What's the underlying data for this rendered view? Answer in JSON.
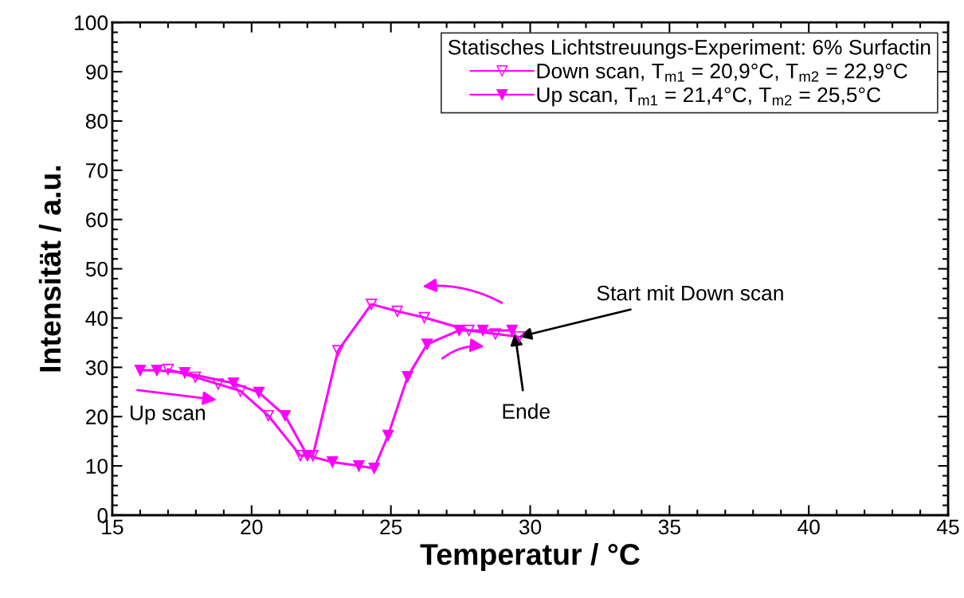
{
  "chart_data": {
    "type": "line",
    "xlabel": "Temperatur / °C",
    "ylabel": "Intensität / a.u.",
    "legend_title": "Statisches Lichtstreuungs-Experiment: 6% Surfactin",
    "xlim": [
      15,
      45
    ],
    "xticks": [
      15,
      20,
      25,
      30,
      35,
      40,
      45
    ],
    "ylim": [
      0,
      100
    ],
    "yticks": [
      0,
      10,
      20,
      30,
      40,
      50,
      60,
      70,
      80,
      90,
      100
    ],
    "grid": false,
    "legend": "top right",
    "line_style": "solid",
    "series": [
      {
        "name": "Down scan, T$_{m1}$ = 20,9°C, T$_{m2}$ = 22,9°C",
        "color": "#ff00ff",
        "marker": "triangle",
        "x": [
          29.6,
          28.75,
          27.8,
          26.2,
          25.23,
          24.3,
          23.1,
          22.2,
          21.75,
          20.6,
          19.6,
          18.8,
          17.98,
          17.0
        ],
        "values": [
          36.2,
          36.8,
          37.5,
          40.1,
          41.4,
          42.8,
          33.4,
          12.1,
          12.1,
          20.2,
          25.2,
          26.6,
          28.0,
          29.6
        ]
      },
      {
        "name": "Up scan, T$_{m1}$ = 21,4°C, T$_{m2}$ = 25,5°C",
        "color": "#ff00ff",
        "marker": "triangle",
        "x": [
          16.0,
          16.6,
          17.6,
          19.35,
          20.26,
          21.2,
          22.0,
          22.9,
          23.85,
          24.4,
          24.9,
          25.6,
          26.3,
          27.45,
          28.3,
          29.35
        ],
        "values": [
          29.4,
          29.4,
          28.9,
          26.8,
          24.9,
          20.2,
          12.1,
          10.8,
          10.0,
          9.5,
          16.2,
          28.1,
          34.7,
          37.5,
          37.5,
          37.5
        ]
      }
    ],
    "annotations": [
      {
        "text": "Start mit Down scan",
        "x": 29.6,
        "y": 36.2
      },
      {
        "text": "Ende",
        "x": 29.45,
        "y": 37.0
      },
      "Up scan"
    ]
  }
}
